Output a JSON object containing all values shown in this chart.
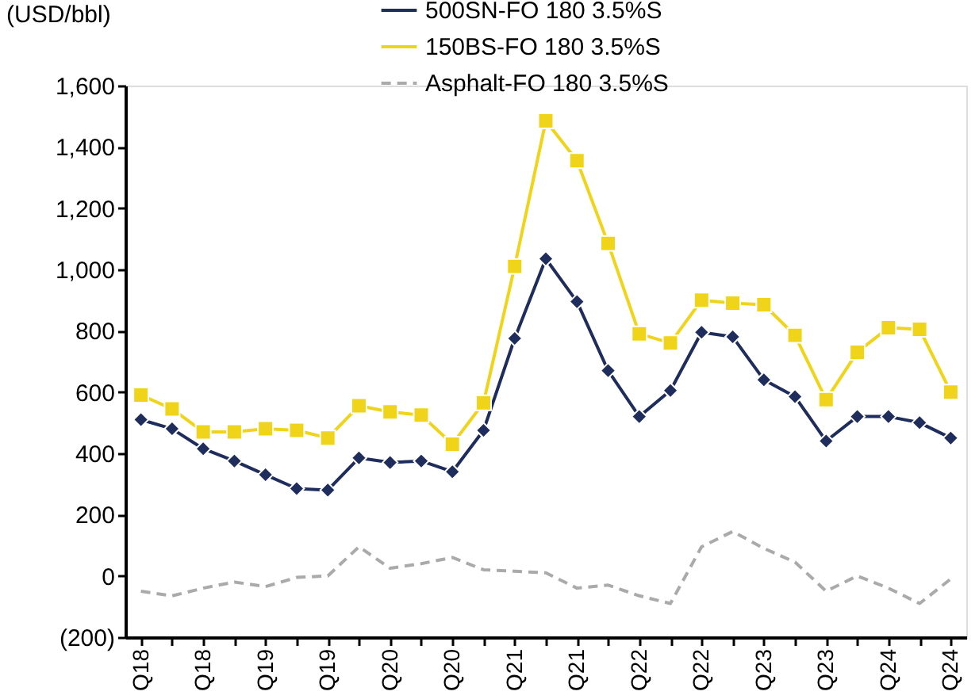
{
  "chart_data": {
    "type": "line",
    "ylabel": "(USD/bbl)",
    "categories": [
      "Q18",
      null,
      "Q18",
      null,
      "Q19",
      null,
      "Q19",
      null,
      "Q20",
      null,
      "Q20",
      null,
      "Q21",
      null,
      "Q21",
      null,
      "Q22",
      null,
      "Q22",
      null,
      "Q23",
      null,
      "Q23",
      null,
      "Q24",
      null,
      "Q24"
    ],
    "series": [
      {
        "name": "500SN-FO 180 3.5%S",
        "color": "#1f2d5c",
        "marker": "diamond",
        "line_style": "solid",
        "values": [
          510,
          480,
          415,
          375,
          330,
          285,
          280,
          385,
          370,
          375,
          340,
          475,
          775,
          1035,
          895,
          670,
          520,
          605,
          795,
          780,
          640,
          585,
          440,
          520,
          520,
          500,
          450
        ]
      },
      {
        "name": "150BS-FO 180 3.5%S",
        "color": "#f0d419",
        "marker": "square",
        "line_style": "solid",
        "values": [
          590,
          545,
          470,
          470,
          480,
          475,
          450,
          555,
          535,
          525,
          430,
          565,
          1010,
          1485,
          1355,
          1085,
          790,
          760,
          900,
          890,
          885,
          785,
          575,
          730,
          810,
          805,
          600
        ]
      },
      {
        "name": "Asphalt-FO 180 3.5%S",
        "color": "#aaaaaa",
        "marker": "none",
        "line_style": "dashed",
        "values": [
          -50,
          -65,
          -40,
          -20,
          -35,
          -5,
          0,
          95,
          25,
          40,
          60,
          20,
          15,
          10,
          -40,
          -30,
          -65,
          -90,
          95,
          145,
          90,
          45,
          -50,
          0,
          -40,
          -90,
          -10
        ]
      }
    ],
    "ylim": [
      -200,
      1600
    ],
    "yticks": [
      {
        "value": -200,
        "label": "(200)"
      },
      0,
      200,
      400,
      600,
      800,
      {
        "value": 1000,
        "label": "1,000"
      },
      {
        "value": 1200,
        "label": "1,200"
      },
      {
        "value": 1400,
        "label": "1,400"
      },
      {
        "value": 1600,
        "label": "1,600"
      }
    ],
    "grid": false,
    "legend": "top"
  }
}
